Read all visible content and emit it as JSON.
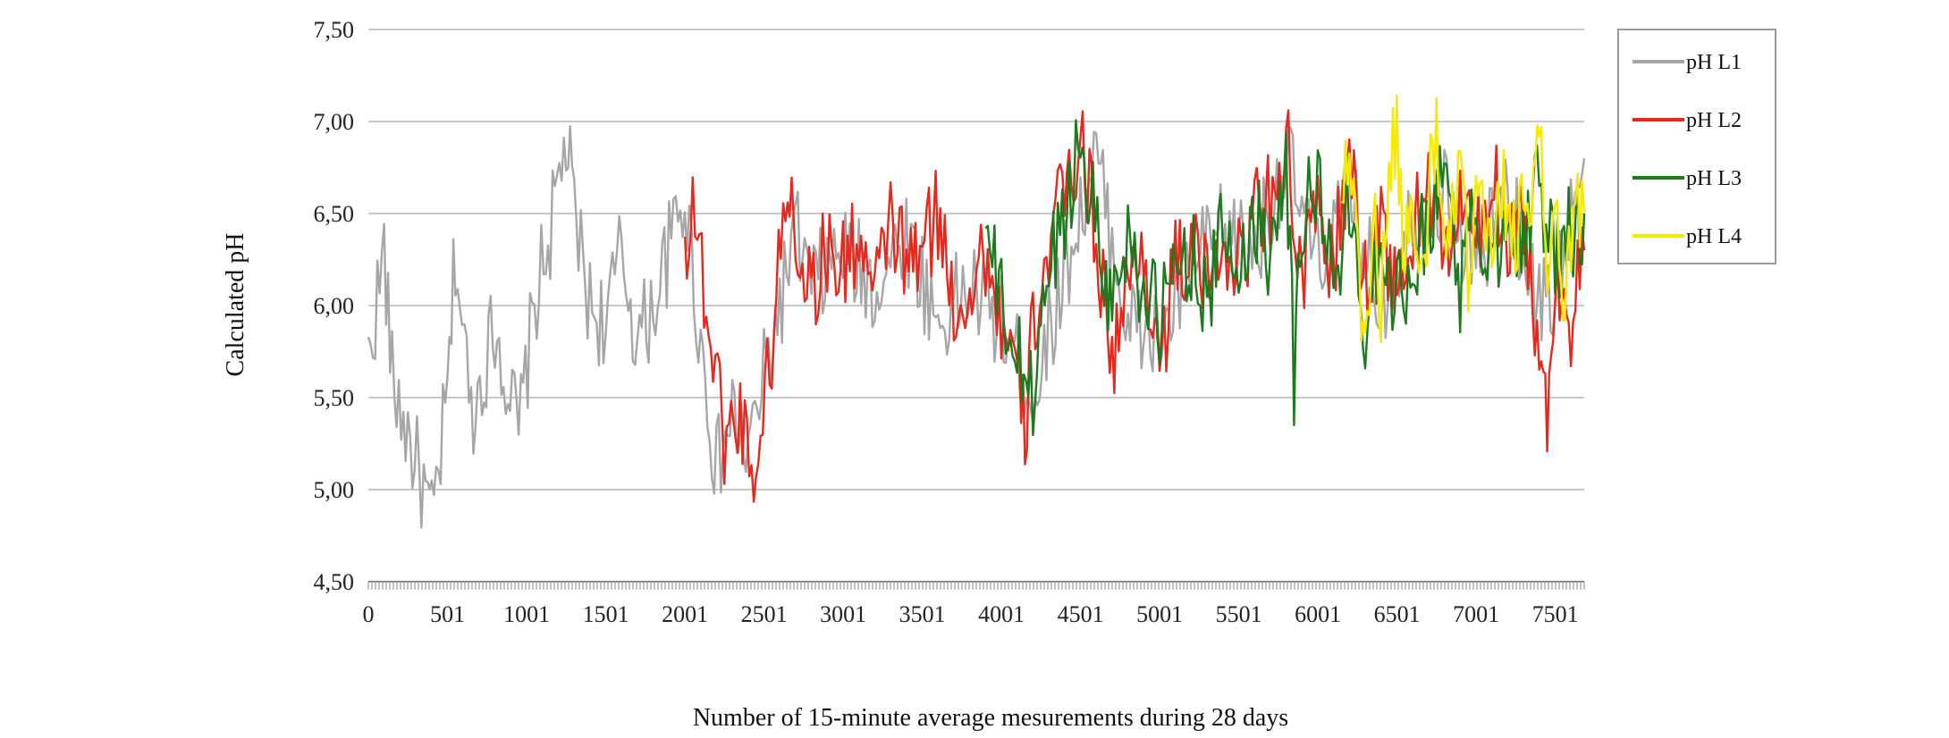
{
  "chart_data": {
    "type": "line",
    "title": "",
    "xlabel": "Number of 15-minute average mesurements during 28 days",
    "ylabel": "Calculated pH",
    "xlim": [
      0,
      7684
    ],
    "ylim": [
      4.5,
      7.5
    ],
    "x_tick_labels": [
      "0",
      "501",
      "1001",
      "1501",
      "2001",
      "2501",
      "3001",
      "3501",
      "4001",
      "4501",
      "5001",
      "5501",
      "6001",
      "6501",
      "7001",
      "7501"
    ],
    "x_tick_values": [
      0,
      501,
      1001,
      1501,
      2001,
      2501,
      3001,
      3501,
      4001,
      4501,
      5001,
      5501,
      6001,
      6501,
      7001,
      7501
    ],
    "y_tick_labels": [
      "4,50",
      "5,00",
      "5,50",
      "6,00",
      "6,50",
      "7,00",
      "7,50"
    ],
    "y_tick_values": [
      4.5,
      5.0,
      5.5,
      6.0,
      6.5,
      7.0,
      7.5
    ],
    "grid": "horizontal",
    "legend": "right",
    "series": [
      {
        "name": "pH L1",
        "color": "#a6a6a6",
        "x": [
          0,
          100,
          150,
          250,
          350,
          400,
          500,
          550,
          650,
          800,
          950,
          1050,
          1150,
          1250,
          1300,
          1400,
          1500,
          1600,
          1700,
          1800,
          1900,
          2000,
          2100,
          2200,
          2300,
          2400,
          2500,
          2600,
          2700,
          2800,
          3000,
          3200,
          3400,
          3600,
          3800,
          4000,
          4200,
          4400,
          4600,
          4800,
          5000,
          5200,
          5400,
          5600,
          5800,
          6000,
          6200,
          6400,
          6600,
          6800,
          7000,
          7200,
          7400,
          7500,
          7684
        ],
        "y": [
          5.7,
          6.3,
          5.6,
          5.3,
          5.0,
          4.8,
          5.5,
          6.3,
          5.4,
          5.9,
          5.3,
          6.0,
          6.4,
          6.9,
          6.5,
          6.0,
          5.9,
          6.3,
          5.8,
          6.0,
          6.3,
          6.6,
          5.8,
          5.1,
          5.4,
          5.2,
          5.6,
          6.0,
          6.4,
          6.1,
          6.3,
          6.1,
          6.4,
          5.9,
          6.1,
          5.9,
          5.5,
          6.2,
          6.8,
          5.9,
          5.8,
          6.2,
          6.4,
          6.3,
          6.8,
          6.2,
          6.6,
          6.0,
          6.5,
          6.6,
          6.2,
          6.6,
          6.0,
          6.1,
          6.8
        ]
      },
      {
        "name": "pH L2",
        "color": "#e8271d",
        "x": [
          2001,
          2050,
          2150,
          2250,
          2350,
          2450,
          2550,
          2650,
          2700,
          2800,
          2900,
          3000,
          3100,
          3200,
          3300,
          3400,
          3500,
          3600,
          3700,
          3800,
          3900,
          4000,
          4100,
          4150,
          4200,
          4300,
          4400,
          4500,
          4600,
          4700,
          4800,
          4900,
          5000,
          5100,
          5200,
          5300,
          5400,
          5500,
          5600,
          5700,
          5800,
          5900,
          6000,
          6100,
          6200,
          6300,
          6400,
          6500,
          6600,
          6700,
          6800,
          6900,
          7000,
          7100,
          7200,
          7300,
          7400,
          7450,
          7500,
          7600,
          7684
        ],
        "y": [
          6.3,
          6.6,
          5.9,
          5.3,
          5.4,
          5.1,
          5.8,
          6.7,
          6.4,
          6.1,
          6.3,
          6.2,
          6.4,
          6.0,
          6.5,
          6.2,
          6.3,
          6.5,
          6.0,
          6.1,
          6.3,
          5.9,
          5.6,
          5.3,
          5.9,
          6.3,
          6.6,
          6.9,
          6.4,
          5.7,
          6.1,
          6.3,
          5.7,
          6.2,
          6.3,
          6.1,
          6.4,
          6.2,
          6.5,
          6.6,
          6.9,
          6.1,
          6.5,
          6.2,
          6.8,
          6.1,
          6.5,
          6.0,
          6.4,
          6.7,
          6.2,
          6.6,
          6.3,
          6.7,
          6.4,
          6.5,
          5.7,
          5.4,
          6.2,
          5.9,
          6.3
        ]
      },
      {
        "name": "pH L3",
        "color": "#1d7a1d",
        "x": [
          3900,
          4000,
          4100,
          4200,
          4250,
          4300,
          4400,
          4500,
          4550,
          4650,
          4700,
          4800,
          4900,
          5000,
          5100,
          5200,
          5300,
          5400,
          5500,
          5600,
          5700,
          5800,
          5850,
          5900,
          6000,
          6100,
          6200,
          6300,
          6400,
          6500,
          6600,
          6700,
          6800,
          6900,
          7000,
          7100,
          7200,
          7300,
          7400,
          7500,
          7600,
          7684
        ],
        "y": [
          6.4,
          6.0,
          5.7,
          5.5,
          5.9,
          6.2,
          6.5,
          6.9,
          6.7,
          6.2,
          6.0,
          6.4,
          6.1,
          5.9,
          6.2,
          6.3,
          6.0,
          6.4,
          6.2,
          6.5,
          6.3,
          6.9,
          5.6,
          6.5,
          6.7,
          6.1,
          6.5,
          5.9,
          6.4,
          6.0,
          6.3,
          6.4,
          6.8,
          6.1,
          6.5,
          6.2,
          6.6,
          6.3,
          6.7,
          6.2,
          6.4,
          6.5
        ]
      },
      {
        "name": "pH L4",
        "color": "#f5ea00",
        "x": [
          6150,
          6200,
          6250,
          6300,
          6350,
          6400,
          6450,
          6500,
          6550,
          6600,
          6650,
          6700,
          6750,
          6800,
          6850,
          6900,
          6950,
          7000,
          7050,
          7100,
          7150,
          7200,
          7250,
          7300,
          7350,
          7400,
          7450,
          7500,
          7550,
          7600,
          7684
        ],
        "y": [
          6.6,
          7.0,
          6.2,
          5.8,
          6.5,
          6.0,
          6.7,
          6.9,
          6.3,
          6.5,
          6.1,
          6.6,
          6.9,
          6.3,
          6.4,
          6.7,
          6.2,
          6.6,
          6.4,
          6.2,
          6.7,
          6.5,
          6.3,
          6.8,
          6.4,
          6.9,
          6.2,
          6.5,
          6.0,
          6.4,
          6.5
        ]
      }
    ]
  }
}
